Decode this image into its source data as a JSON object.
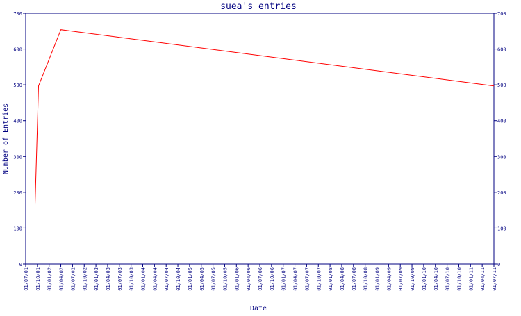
{
  "chart_data": {
    "type": "line",
    "title": "suea's entries",
    "xlabel": "Date",
    "ylabel": "Number of Entries",
    "ylim": [
      0,
      700
    ],
    "y_ticks": [
      0,
      100,
      200,
      300,
      400,
      500,
      600,
      700
    ],
    "x_ticks": [
      "01/07/01",
      "01/10/01",
      "01/01/02",
      "01/04/02",
      "01/07/02",
      "01/10/02",
      "01/01/03",
      "01/04/03",
      "01/07/03",
      "01/10/03",
      "01/01/04",
      "01/04/04",
      "01/07/04",
      "01/10/04",
      "01/01/05",
      "01/04/05",
      "01/07/05",
      "01/10/05",
      "01/01/06",
      "01/04/06",
      "01/07/06",
      "01/10/06",
      "01/01/07",
      "01/04/07",
      "01/07/07",
      "01/10/07",
      "01/01/08",
      "01/04/08",
      "01/07/08",
      "01/10/08",
      "01/01/09",
      "01/04/09",
      "01/07/09",
      "01/10/09",
      "01/01/10",
      "01/04/10",
      "01/07/10",
      "01/10/10",
      "01/01/11",
      "01/04/11",
      "01/07/11"
    ],
    "grid": false,
    "right_axis": true,
    "colors": {
      "axis": "#000080",
      "line": "#ff0000",
      "text": "#000080"
    },
    "series": [
      {
        "x": [
          0.8,
          1.1,
          3.0,
          40.0
        ],
        "y": [
          165,
          497,
          654,
          497
        ]
      }
    ]
  }
}
